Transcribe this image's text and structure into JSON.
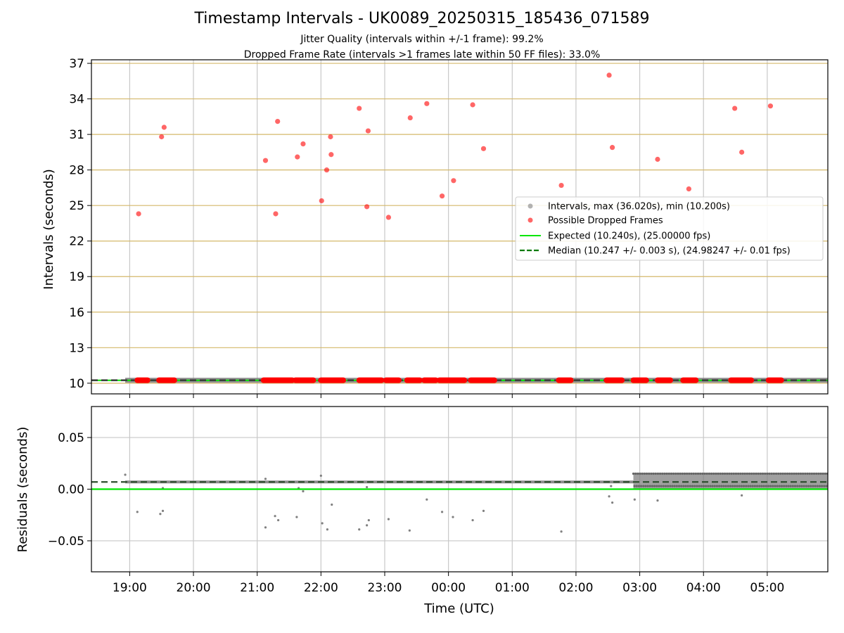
{
  "figure": {
    "title": "Timestamp Intervals - UK0089_20250315_185436_071589",
    "subtitle1": "Jitter Quality (intervals within +/-1 frame): 99.2%",
    "subtitle2": "Dropped Frame Rate (intervals >1 frames late within 50 FF files): 33.0%"
  },
  "chart_data": [
    {
      "type": "scatter",
      "name": "Intervals",
      "xlabel": "",
      "ylabel": "Intervals (seconds)",
      "ylim": [
        9.1,
        37.3
      ],
      "xlim_hours": [
        18.4,
        29.95
      ],
      "yticks": [
        10,
        13,
        16,
        19,
        22,
        25,
        28,
        31,
        34,
        37
      ],
      "grid": true,
      "legend_placement": "center-right",
      "colors": {
        "intervals": "#808080",
        "dropped": "#ff0000",
        "expected": "#00e600",
        "median": "#007a00",
        "hgrid": "#d4b86a",
        "vgrid": "#c8c8c8"
      },
      "legend": [
        "Intervals, max (36.020s), min (10.200s)",
        "Possible Dropped Frames",
        "Expected (10.240s), (25.00000 fps)",
        "Median (10.247 +/- 0.003 s), (24.98247 +/- 0.01 fps)"
      ],
      "expected": 10.24,
      "median": 10.247,
      "interval_band": {
        "x_start": 18.93,
        "x_end": 29.95,
        "y": 10.247
      },
      "dropped_frames": [
        [
          19.14,
          24.3
        ],
        [
          19.5,
          30.8
        ],
        [
          19.54,
          31.6
        ],
        [
          21.13,
          28.8
        ],
        [
          21.29,
          24.3
        ],
        [
          21.32,
          32.1
        ],
        [
          21.63,
          29.1
        ],
        [
          21.72,
          30.2
        ],
        [
          22.01,
          25.4
        ],
        [
          22.09,
          28.0
        ],
        [
          22.15,
          30.8
        ],
        [
          22.16,
          29.3
        ],
        [
          22.6,
          33.2
        ],
        [
          22.72,
          24.9
        ],
        [
          22.74,
          31.3
        ],
        [
          23.06,
          24.0
        ],
        [
          23.4,
          32.4
        ],
        [
          23.66,
          33.6
        ],
        [
          23.9,
          25.8
        ],
        [
          24.08,
          27.1
        ],
        [
          24.38,
          33.5
        ],
        [
          24.55,
          29.8
        ],
        [
          25.77,
          26.7
        ],
        [
          26.52,
          36.0
        ],
        [
          26.57,
          29.9
        ],
        [
          27.28,
          28.9
        ],
        [
          27.77,
          26.4
        ],
        [
          28.49,
          33.2
        ],
        [
          28.6,
          29.5
        ],
        [
          29.05,
          33.4
        ]
      ],
      "dropped_baseline_ranges": [
        [
          19.12,
          19.28
        ],
        [
          19.46,
          19.7
        ],
        [
          21.1,
          21.55
        ],
        [
          21.6,
          21.88
        ],
        [
          22.0,
          22.35
        ],
        [
          22.6,
          22.95
        ],
        [
          23.02,
          23.22
        ],
        [
          23.35,
          23.55
        ],
        [
          23.62,
          23.8
        ],
        [
          23.86,
          24.25
        ],
        [
          24.35,
          24.72
        ],
        [
          25.73,
          25.92
        ],
        [
          26.48,
          26.72
        ],
        [
          26.9,
          27.1
        ],
        [
          27.28,
          27.48
        ],
        [
          27.68,
          27.88
        ],
        [
          28.43,
          28.75
        ],
        [
          29.02,
          29.22
        ]
      ]
    },
    {
      "type": "scatter",
      "name": "Residuals",
      "xlabel": "Time (UTC)",
      "ylabel": "Residuals (seconds)",
      "ylim": [
        -0.08,
        0.08
      ],
      "xlim_hours": [
        18.4,
        29.95
      ],
      "yticks": [
        "0.05",
        "0.00",
        "−0.05"
      ],
      "ytick_values": [
        0.05,
        0.0,
        -0.05
      ],
      "xticks": [
        "19:00",
        "20:00",
        "21:00",
        "22:00",
        "23:00",
        "00:00",
        "01:00",
        "02:00",
        "03:00",
        "04:00",
        "05:00"
      ],
      "xtick_hours": [
        19,
        20,
        21,
        22,
        23,
        24,
        25,
        26,
        27,
        28,
        29
      ],
      "grid": true,
      "expected": 0.0,
      "median": 0.007,
      "negative_outliers": [
        [
          19.12,
          -0.022
        ],
        [
          19.48,
          -0.024
        ],
        [
          19.52,
          -0.021
        ],
        [
          21.13,
          -0.037
        ],
        [
          21.28,
          -0.026
        ],
        [
          21.33,
          -0.03
        ],
        [
          21.62,
          -0.027
        ],
        [
          22.02,
          -0.033
        ],
        [
          22.1,
          -0.039
        ],
        [
          22.17,
          -0.015
        ],
        [
          22.6,
          -0.039
        ],
        [
          22.72,
          -0.035
        ],
        [
          22.75,
          -0.03
        ],
        [
          23.06,
          -0.029
        ],
        [
          23.39,
          -0.04
        ],
        [
          23.66,
          -0.01
        ],
        [
          23.9,
          -0.022
        ],
        [
          24.07,
          -0.027
        ],
        [
          24.38,
          -0.03
        ],
        [
          24.55,
          -0.021
        ],
        [
          25.77,
          -0.041
        ],
        [
          26.52,
          -0.007
        ],
        [
          26.57,
          -0.013
        ],
        [
          26.92,
          -0.01
        ],
        [
          27.28,
          -0.011
        ],
        [
          28.6,
          -0.006
        ]
      ],
      "positive_outliers": [
        [
          18.93,
          0.014
        ],
        [
          19.52,
          0.001
        ],
        [
          21.13,
          0.01
        ],
        [
          21.65,
          0.001
        ],
        [
          21.72,
          -0.002
        ],
        [
          22.0,
          0.013
        ],
        [
          22.72,
          0.002
        ],
        [
          26.55,
          0.003
        ]
      ],
      "baseline_band_early": {
        "x_start": 18.93,
        "x_end": 26.9,
        "y": 0.007
      },
      "band_late": {
        "x_start": 26.9,
        "x_end": 29.95,
        "y_min": 0.0,
        "y_max": 0.016
      }
    }
  ]
}
